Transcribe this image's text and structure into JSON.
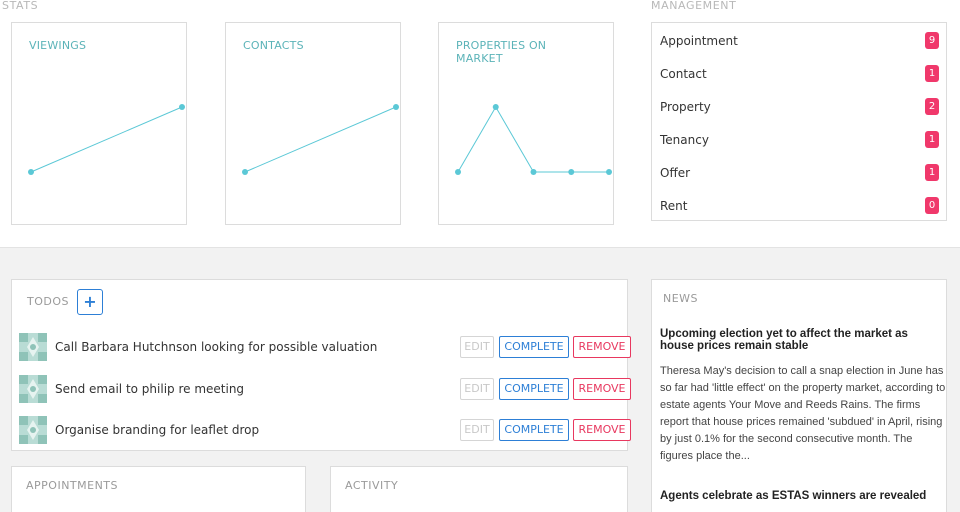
{
  "stats": {
    "label": "STATS",
    "cards": [
      {
        "title": "VIEWINGS"
      },
      {
        "title": "CONTACTS"
      },
      {
        "title": "PROPERTIES ON MARKET"
      }
    ],
    "line_color": "#5bc8d6"
  },
  "chart_data": [
    {
      "type": "line",
      "title": "VIEWINGS",
      "x": [
        0,
        1
      ],
      "values": [
        1,
        2
      ]
    },
    {
      "type": "line",
      "title": "CONTACTS",
      "x": [
        0,
        1
      ],
      "values": [
        1,
        2
      ]
    },
    {
      "type": "line",
      "title": "PROPERTIES ON MARKET",
      "x": [
        0,
        1,
        2,
        3,
        4
      ],
      "values": [
        0,
        1,
        0,
        0,
        0
      ]
    }
  ],
  "management": {
    "label": "MANAGEMENT",
    "items": [
      {
        "label": "Appointment",
        "count": "9"
      },
      {
        "label": "Contact",
        "count": "1"
      },
      {
        "label": "Property",
        "count": "2"
      },
      {
        "label": "Tenancy",
        "count": "1"
      },
      {
        "label": "Offer",
        "count": "1"
      },
      {
        "label": "Rent",
        "count": "0"
      }
    ],
    "badge_color": "#f0386b"
  },
  "todos": {
    "title": "TODOS",
    "add_label": "+",
    "edit_label": "EDIT",
    "complete_label": "COMPLETE",
    "remove_label": "REMOVE",
    "items": [
      {
        "text": "Call Barbara Hutchnson looking for possible valuation"
      },
      {
        "text": "Send email to philip re meeting"
      },
      {
        "text": "Organise branding for leaflet drop"
      }
    ]
  },
  "appointments": {
    "title": "APPOINTMENTS"
  },
  "activity": {
    "title": "ACTIVITY"
  },
  "news": {
    "title": "NEWS",
    "articles": [
      {
        "headline": "Upcoming election yet to affect the market as house prices remain stable",
        "body": "Theresa May's decision to call a snap election in June has so far had 'little effect' on the property market, according to estate agents Your Move and Reeds Rains. The firms report that house prices remained 'subdued' in April, rising by just 0.1% for the second consecutive month. The figures place the..."
      },
      {
        "headline": "Agents celebrate as ESTAS winners are revealed"
      }
    ]
  }
}
